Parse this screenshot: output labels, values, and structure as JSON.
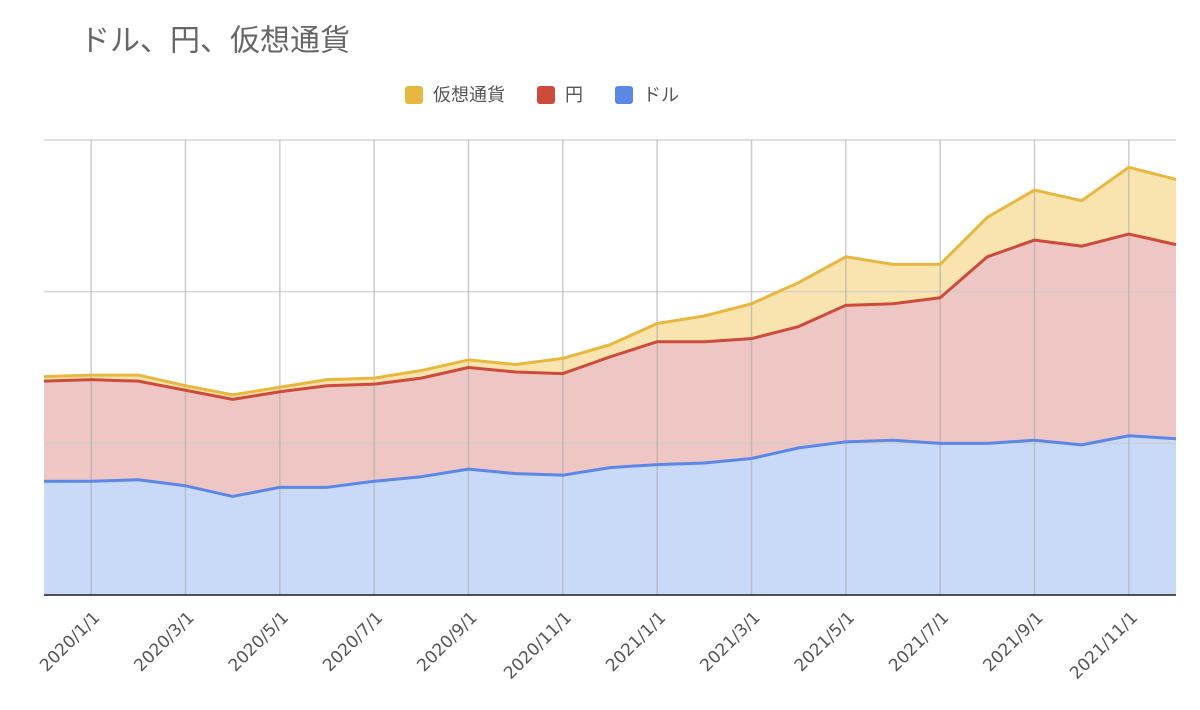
{
  "chart_data": {
    "type": "stacked_area",
    "title": "ドル、円、仮想通貨",
    "categories": [
      null,
      "2020/1/1",
      null,
      "2020/3/1",
      null,
      "2020/5/1",
      null,
      "2020/7/1",
      null,
      "2020/9/1",
      null,
      "2020/11/1",
      null,
      "2021/1/1",
      null,
      "2021/3/1",
      null,
      "2021/5/1",
      null,
      "2021/7/1",
      null,
      "2021/9/1",
      null,
      "2021/11/1",
      null
    ],
    "series": [
      {
        "name": "ドル",
        "color": "#5b87e6",
        "fill": "#c9d9f8",
        "values": [
          0.75,
          0.75,
          0.76,
          0.72,
          0.65,
          0.71,
          0.71,
          0.75,
          0.78,
          0.83,
          0.8,
          0.79,
          0.84,
          0.86,
          0.87,
          0.9,
          0.97,
          1.01,
          1.02,
          1.0,
          1.0,
          1.02,
          0.99,
          1.05,
          1.03
        ]
      },
      {
        "name": "円",
        "color": "#cc4b3a",
        "fill": "#eec6c3",
        "values": [
          0.66,
          0.67,
          0.65,
          0.63,
          0.64,
          0.63,
          0.67,
          0.64,
          0.65,
          0.67,
          0.67,
          0.67,
          0.73,
          0.81,
          0.8,
          0.79,
          0.8,
          0.9,
          0.9,
          0.96,
          1.23,
          1.32,
          1.31,
          1.33,
          1.28
        ]
      },
      {
        "name": "仮想通貨",
        "color": "#e8b73d",
        "fill": "#f9e4b0",
        "values": [
          0.03,
          0.03,
          0.04,
          0.03,
          0.03,
          0.03,
          0.04,
          0.04,
          0.05,
          0.05,
          0.05,
          0.1,
          0.08,
          0.12,
          0.17,
          0.23,
          0.29,
          0.32,
          0.26,
          0.22,
          0.26,
          0.33,
          0.3,
          0.44,
          0.43
        ]
      }
    ],
    "ylim": [
      0,
      3
    ],
    "yticks": [
      0,
      1,
      2,
      3
    ],
    "grid": true,
    "legend": "top"
  }
}
